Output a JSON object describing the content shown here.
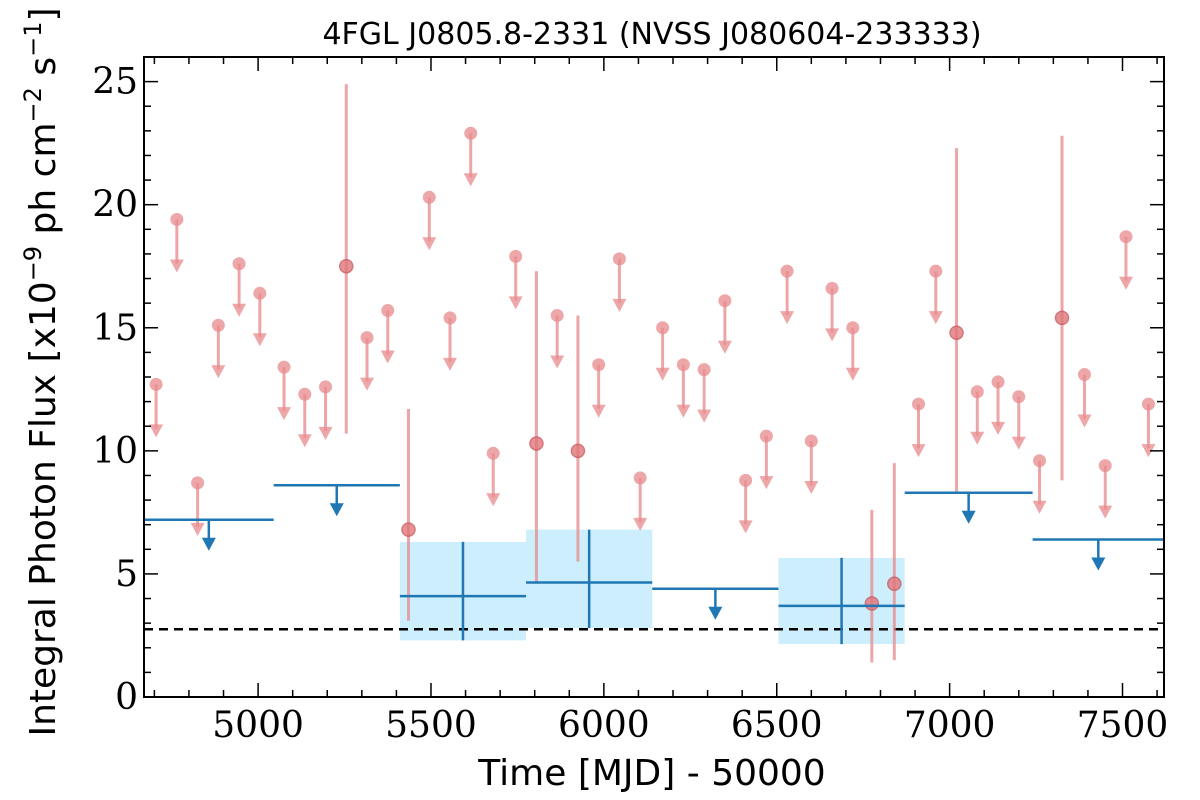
{
  "chart_data": {
    "type": "scatter",
    "title": "4FGL J0805.8-2331 (NVSS J080604-233333)",
    "xlabel": "Time [MJD] - 50000",
    "ylabel": "Integral Photon Flux [x10",
    "ylabel_exp": "−9",
    "ylabel_mid": " ph cm",
    "ylabel_exp2": "−2",
    "ylabel_end": " s",
    "ylabel_exp3": "−1",
    "ylabel_close": "]",
    "xlim": [
      4670,
      7620
    ],
    "ylim": [
      0,
      26
    ],
    "xticks": [
      "5000",
      "5500",
      "6000",
      "6500",
      "7000",
      "7500"
    ],
    "yticks": [
      "0",
      "5",
      "10",
      "15",
      "20",
      "25"
    ],
    "grid": false,
    "reference_level": 2.75,
    "colors": {
      "short_bins": "#e8898c",
      "long_bins": "#1f77b4",
      "long_bins_band": "#cdeefc",
      "reference_line": "#000000"
    },
    "short_bin_upper_limits": [
      {
        "x": 4705,
        "y": 12.7
      },
      {
        "x": 4765,
        "y": 19.4
      },
      {
        "x": 4825,
        "y": 8.7
      },
      {
        "x": 4885,
        "y": 15.1
      },
      {
        "x": 4945,
        "y": 17.6
      },
      {
        "x": 5005,
        "y": 16.4
      },
      {
        "x": 5075,
        "y": 13.4
      },
      {
        "x": 5135,
        "y": 12.3
      },
      {
        "x": 5195,
        "y": 12.6
      },
      {
        "x": 5315,
        "y": 14.6
      },
      {
        "x": 5375,
        "y": 15.7
      },
      {
        "x": 5495,
        "y": 20.3
      },
      {
        "x": 5555,
        "y": 15.4
      },
      {
        "x": 5615,
        "y": 22.9
      },
      {
        "x": 5680,
        "y": 9.9
      },
      {
        "x": 5745,
        "y": 17.9
      },
      {
        "x": 5865,
        "y": 15.5
      },
      {
        "x": 5985,
        "y": 13.5
      },
      {
        "x": 6045,
        "y": 17.8
      },
      {
        "x": 6105,
        "y": 8.9
      },
      {
        "x": 6170,
        "y": 15.0
      },
      {
        "x": 6230,
        "y": 13.5
      },
      {
        "x": 6290,
        "y": 13.3
      },
      {
        "x": 6350,
        "y": 16.1
      },
      {
        "x": 6410,
        "y": 8.8
      },
      {
        "x": 6470,
        "y": 10.6
      },
      {
        "x": 6530,
        "y": 17.3
      },
      {
        "x": 6600,
        "y": 10.4
      },
      {
        "x": 6660,
        "y": 16.6
      },
      {
        "x": 6720,
        "y": 15.0
      },
      {
        "x": 6910,
        "y": 11.9
      },
      {
        "x": 6960,
        "y": 17.3
      },
      {
        "x": 7080,
        "y": 12.4
      },
      {
        "x": 7140,
        "y": 12.8
      },
      {
        "x": 7200,
        "y": 12.2
      },
      {
        "x": 7260,
        "y": 9.6
      },
      {
        "x": 7390,
        "y": 13.1
      },
      {
        "x": 7450,
        "y": 9.4
      },
      {
        "x": 7510,
        "y": 18.7
      },
      {
        "x": 7575,
        "y": 11.9
      }
    ],
    "short_bin_detections": [
      {
        "x": 5255,
        "y": 17.5,
        "err_low": 10.7,
        "err_high": 24.9
      },
      {
        "x": 5435,
        "y": 6.8,
        "err_low": 3.1,
        "err_high": 11.7
      },
      {
        "x": 5805,
        "y": 10.3,
        "err_low": 4.6,
        "err_high": 17.3
      },
      {
        "x": 5925,
        "y": 10.0,
        "err_low": 5.5,
        "err_high": 15.5
      },
      {
        "x": 6775,
        "y": 3.8,
        "err_low": 1.4,
        "err_high": 7.6
      },
      {
        "x": 6840,
        "y": 4.6,
        "err_low": 1.5,
        "err_high": 9.5
      },
      {
        "x": 7020,
        "y": 14.8,
        "err_low": 8.3,
        "err_high": 22.3
      },
      {
        "x": 7325,
        "y": 15.4,
        "err_low": 8.8,
        "err_high": 22.8
      }
    ],
    "long_bin_upper_limits": [
      {
        "x_start": 4670,
        "x_end": 5045,
        "y": 7.2
      },
      {
        "x_start": 5045,
        "x_end": 5410,
        "y": 8.6
      },
      {
        "x_start": 6140,
        "x_end": 6505,
        "y": 4.4
      },
      {
        "x_start": 6870,
        "x_end": 7240,
        "y": 8.3
      },
      {
        "x_start": 7240,
        "x_end": 7620,
        "y": 6.4
      }
    ],
    "long_bin_detections": [
      {
        "x_start": 5410,
        "x_end": 5775,
        "y": 4.1,
        "err_low": 2.3,
        "err_high": 6.3
      },
      {
        "x_start": 5775,
        "x_end": 6140,
        "y": 4.65,
        "err_low": 2.8,
        "err_high": 6.8
      },
      {
        "x_start": 6505,
        "x_end": 6870,
        "y": 3.7,
        "err_low": 2.15,
        "err_high": 5.65
      }
    ]
  }
}
